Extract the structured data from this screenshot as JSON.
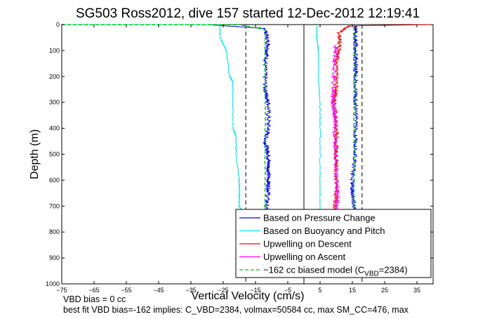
{
  "chart_data": {
    "type": "line",
    "title": "SG503 Ross2012, dive 157 started 12-Dec-2012 12:19:41",
    "xlabel": "Vertical Velocity (cm/s)",
    "ylabel": "Depth (m)",
    "xlim": [
      -75,
      40
    ],
    "ylim": [
      0,
      1000
    ],
    "y_reversed": true,
    "xticks": [
      -75,
      -65,
      -55,
      -45,
      -35,
      -25,
      -15,
      -5,
      5,
      15,
      25,
      35
    ],
    "yticks": [
      0,
      100,
      200,
      300,
      400,
      500,
      600,
      700,
      800,
      900,
      1000
    ],
    "legend_position": "bottom-right",
    "series": [
      {
        "name": "Based on Pressure Change",
        "color": "#0000ff",
        "style": "solid",
        "groups": [
          {
            "x": [
              -75,
              -30,
              -12,
              -11,
              -12,
              -12,
              -11,
              -11,
              -12,
              -11,
              -11,
              -11,
              -11,
              -12
            ],
            "y": [
              0,
              0,
              15,
              80,
              150,
              250,
              300,
              400,
              450,
              500,
              550,
              600,
              650,
              730
            ]
          },
          {
            "x": [
              16,
              15,
              15,
              16,
              16,
              16,
              16,
              16,
              16,
              16,
              16
            ],
            "y": [
              730,
              650,
              600,
              500,
              400,
              300,
              200,
              150,
              100,
              50,
              5
            ]
          }
        ]
      },
      {
        "name": "Based on Buoyancy and Pitch",
        "color": "#00e5ee",
        "style": "solid",
        "groups": [
          {
            "x": [
              -75,
              -26,
              -26,
              -24,
              -23,
              -22,
              -22,
              -22,
              -21,
              -21,
              -20,
              -20,
              -20,
              -19
            ],
            "y": [
              0,
              0,
              50,
              100,
              200,
              220,
              300,
              400,
              430,
              500,
              600,
              650,
              700,
              730
            ]
          },
          {
            "x": [
              5,
              5,
              5,
              5,
              4.5,
              4.5,
              4,
              4
            ],
            "y": [
              730,
              600,
              400,
              300,
              200,
              100,
              50,
              5
            ]
          }
        ]
      },
      {
        "name": "Upwelling on Descent",
        "color": "#ff0000",
        "style": "solid",
        "groups": [
          {
            "x": [
              40,
              14,
              11,
              11,
              10,
              10,
              9.5,
              10,
              10,
              10,
              10,
              10,
              9.5
            ],
            "y": [
              0,
              5,
              30,
              100,
              150,
              250,
              300,
              400,
              450,
              500,
              550,
              650,
              730
            ]
          }
        ]
      },
      {
        "name": "Upwelling on Ascent",
        "color": "#ff00ff",
        "style": "solid",
        "groups": [
          {
            "x": [
              10,
              10.5,
              10,
              10,
              9.5,
              9.5,
              9,
              9,
              9.5,
              10
            ],
            "y": [
              730,
              650,
              600,
              500,
              400,
              350,
              300,
              250,
              150,
              80
            ]
          }
        ]
      },
      {
        "name": "−162 cc biased model (C",
        "name_sub": "VBD",
        "name_suffix": "=2384)",
        "color": "#00cc00",
        "style": "dashed",
        "groups": [
          {
            "x": [
              -75,
              -20,
              -12,
              -12,
              -12,
              -12,
              -12,
              -12
            ],
            "y": [
              0,
              0,
              20,
              100,
              300,
              500,
              700,
              730
            ]
          },
          {
            "x": [
              15.5,
              15.5,
              15.5,
              15.5,
              15.5
            ],
            "y": [
              730,
              500,
              300,
              100,
              5
            ]
          }
        ]
      }
    ],
    "reference_lines": [
      {
        "x": 0,
        "color": "#000000",
        "style": "solid"
      },
      {
        "x": -18,
        "color": "#000000",
        "style": "dashed"
      },
      {
        "x": 18,
        "color": "#000000",
        "style": "dashed"
      }
    ]
  },
  "footer": {
    "line1": "VBD bias = 0 cc",
    "line2": "best fit VBD bias=-162 implies: C_VBD=2384, volmax=50584 cc, max SM_CC=476, max"
  }
}
